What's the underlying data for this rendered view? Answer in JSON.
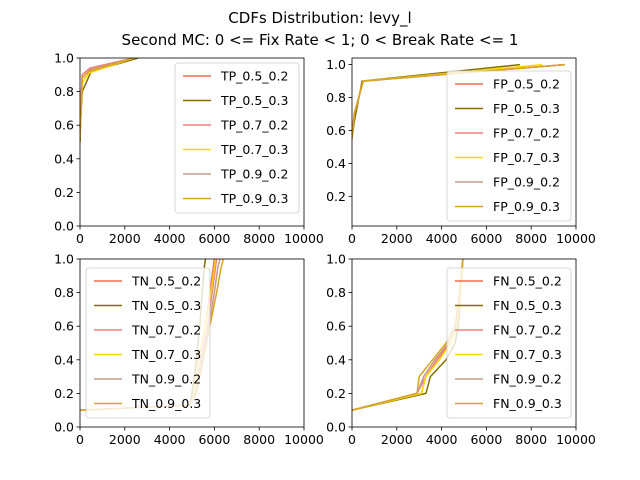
{
  "figure": {
    "title_line1": "CDFs Distribution: levy_l",
    "title_line2": "Second MC: 0 <= Fix Rate < 1; 0 < Break Rate <= 1"
  },
  "chart_data": [
    {
      "type": "line",
      "panel": "top-left",
      "xlim": [
        0,
        10000
      ],
      "ylim": [
        0,
        1.0
      ],
      "xticks": [
        "0",
        "2000",
        "4000",
        "6000",
        "8000",
        "10000"
      ],
      "yticks": [
        "0.0",
        "0.2",
        "0.4",
        "0.6",
        "0.8",
        "1.0"
      ],
      "legend_position": "upper-right",
      "series": [
        {
          "name": "TP_0.5_0.2",
          "color": "#f26b50",
          "x": [
            0,
            20,
            100,
            450,
            2400
          ],
          "y": [
            0.5,
            0.6,
            0.9,
            0.94,
            1.0
          ]
        },
        {
          "name": "TP_0.5_0.3",
          "color": "#807000",
          "x": [
            0,
            20,
            100,
            500,
            2600
          ],
          "y": [
            0.5,
            0.6,
            0.8,
            0.92,
            1.0
          ]
        },
        {
          "name": "TP_0.7_0.2",
          "color": "#f08080",
          "x": [
            0,
            20,
            100,
            450,
            2400
          ],
          "y": [
            0.55,
            0.65,
            0.9,
            0.94,
            1.0
          ]
        },
        {
          "name": "TP_0.7_0.3",
          "color": "#ffd700",
          "x": [
            0,
            20,
            100,
            400,
            2400
          ],
          "y": [
            0.5,
            0.6,
            0.85,
            0.91,
            1.0
          ]
        },
        {
          "name": "TP_0.9_0.2",
          "color": "#c49a8a",
          "x": [
            0,
            20,
            100,
            450,
            2400
          ],
          "y": [
            0.5,
            0.6,
            0.88,
            0.93,
            1.0
          ]
        },
        {
          "name": "TP_0.9_0.3",
          "color": "#daa520",
          "x": [
            0,
            20,
            100,
            400,
            2400
          ],
          "y": [
            0.5,
            0.62,
            0.88,
            0.92,
            1.0
          ]
        }
      ]
    },
    {
      "type": "line",
      "panel": "top-right",
      "xlim": [
        0,
        10000
      ],
      "ylim": [
        0.02,
        1.04
      ],
      "xticks": [
        "0",
        "2000",
        "4000",
        "6000",
        "8000",
        "10000"
      ],
      "yticks": [
        "0.2",
        "0.4",
        "0.6",
        "0.8",
        "1.0"
      ],
      "legend_position": "lower-right",
      "series": [
        {
          "name": "FP_0.5_0.2",
          "color": "#f26b50",
          "x": [
            0,
            100,
            500,
            9500
          ],
          "y": [
            0.55,
            0.7,
            0.9,
            1.0
          ]
        },
        {
          "name": "FP_0.5_0.3",
          "color": "#807000",
          "x": [
            0,
            100,
            450,
            7500
          ],
          "y": [
            0.55,
            0.65,
            0.9,
            1.0
          ]
        },
        {
          "name": "FP_0.7_0.2",
          "color": "#f08080",
          "x": [
            0,
            100,
            500,
            9500
          ],
          "y": [
            0.55,
            0.7,
            0.9,
            1.0
          ]
        },
        {
          "name": "FP_0.7_0.3",
          "color": "#ffd700",
          "x": [
            0,
            100,
            500,
            8500
          ],
          "y": [
            0.55,
            0.7,
            0.9,
            1.0
          ]
        },
        {
          "name": "FP_0.9_0.2",
          "color": "#c49a8a",
          "x": [
            0,
            100,
            500,
            9500
          ],
          "y": [
            0.55,
            0.7,
            0.9,
            1.0
          ]
        },
        {
          "name": "FP_0.9_0.3",
          "color": "#daa520",
          "x": [
            0,
            100,
            500,
            9500
          ],
          "y": [
            0.55,
            0.7,
            0.9,
            1.0
          ]
        }
      ]
    },
    {
      "type": "line",
      "panel": "bottom-left",
      "xlim": [
        0,
        10000
      ],
      "ylim": [
        0,
        1.0
      ],
      "xticks": [
        "0",
        "2000",
        "4000",
        "6000",
        "8000",
        "10000"
      ],
      "yticks": [
        "0.0",
        "0.2",
        "0.4",
        "0.6",
        "0.8",
        "1.0"
      ],
      "legend_position": "center-left",
      "series": [
        {
          "name": "TN_0.5_0.2",
          "color": "#f26b50",
          "x": [
            0,
            4900,
            5100,
            5300,
            5600,
            5800,
            5950,
            6000
          ],
          "y": [
            0.1,
            0.13,
            0.2,
            0.4,
            0.6,
            0.8,
            0.95,
            1.0
          ]
        },
        {
          "name": "TN_0.5_0.3",
          "color": "#807000",
          "x": [
            0,
            4900,
            5000,
            5200,
            5350,
            5450,
            5550,
            5600
          ],
          "y": [
            0.1,
            0.13,
            0.2,
            0.4,
            0.6,
            0.8,
            0.95,
            1.0
          ]
        },
        {
          "name": "TN_0.7_0.2",
          "color": "#f08080",
          "x": [
            0,
            4900,
            5150,
            5400,
            5700,
            5900,
            6050,
            6100
          ],
          "y": [
            0.1,
            0.13,
            0.2,
            0.4,
            0.6,
            0.8,
            0.95,
            1.0
          ]
        },
        {
          "name": "TN_0.7_0.3",
          "color": "#ffd700",
          "x": [
            0,
            4900,
            5100,
            5300,
            5600,
            5850,
            6000,
            6050
          ],
          "y": [
            0.1,
            0.13,
            0.2,
            0.4,
            0.6,
            0.8,
            0.95,
            1.0
          ]
        },
        {
          "name": "TN_0.9_0.2",
          "color": "#c49a8a",
          "x": [
            0,
            4900,
            5150,
            5450,
            5750,
            6000,
            6150,
            6250
          ],
          "y": [
            0.1,
            0.13,
            0.2,
            0.4,
            0.6,
            0.8,
            0.95,
            1.0
          ]
        },
        {
          "name": "TN_0.9_0.3",
          "color": "#daa520",
          "x": [
            0,
            4900,
            5200,
            5500,
            5800,
            6100,
            6300,
            6400
          ],
          "y": [
            0.1,
            0.13,
            0.2,
            0.4,
            0.6,
            0.8,
            0.95,
            1.0
          ]
        }
      ]
    },
    {
      "type": "line",
      "panel": "bottom-right",
      "xlim": [
        0,
        10000
      ],
      "ylim": [
        0,
        1.0
      ],
      "xticks": [
        "0",
        "2000",
        "4000",
        "6000",
        "8000",
        "10000"
      ],
      "yticks": [
        "0.0",
        "0.2",
        "0.4",
        "0.6",
        "0.8",
        "1.0"
      ],
      "legend_position": "center-right",
      "series": [
        {
          "name": "FN_0.5_0.2",
          "color": "#f26b50",
          "x": [
            0,
            3100,
            3300,
            3800,
            4400,
            4700,
            4850,
            4950
          ],
          "y": [
            0.1,
            0.2,
            0.3,
            0.4,
            0.5,
            0.6,
            0.8,
            1.0
          ]
        },
        {
          "name": "FN_0.5_0.3",
          "color": "#807000",
          "x": [
            0,
            3300,
            3500,
            4200,
            4600,
            4750,
            4850,
            4950
          ],
          "y": [
            0.1,
            0.2,
            0.3,
            0.4,
            0.5,
            0.6,
            0.8,
            1.0
          ]
        },
        {
          "name": "FN_0.7_0.2",
          "color": "#f08080",
          "x": [
            0,
            2900,
            3300,
            3800,
            4300,
            4650,
            4800,
            4950
          ],
          "y": [
            0.1,
            0.2,
            0.3,
            0.4,
            0.5,
            0.6,
            0.8,
            1.0
          ]
        },
        {
          "name": "FN_0.7_0.3",
          "color": "#ffd700",
          "x": [
            0,
            3100,
            3300,
            3900,
            4400,
            4700,
            4850,
            4950
          ],
          "y": [
            0.1,
            0.2,
            0.3,
            0.4,
            0.5,
            0.6,
            0.8,
            1.0
          ]
        },
        {
          "name": "FN_0.9_0.2",
          "color": "#c49a8a",
          "x": [
            0,
            2900,
            3200,
            3700,
            4300,
            4650,
            4800,
            4950
          ],
          "y": [
            0.1,
            0.2,
            0.3,
            0.4,
            0.5,
            0.6,
            0.8,
            1.0
          ]
        },
        {
          "name": "FN_0.9_0.3",
          "color": "#daa520",
          "x": [
            0,
            2900,
            3000,
            3600,
            4200,
            4600,
            4800,
            4950
          ],
          "y": [
            0.1,
            0.2,
            0.3,
            0.4,
            0.5,
            0.6,
            0.8,
            1.0
          ]
        }
      ]
    }
  ]
}
